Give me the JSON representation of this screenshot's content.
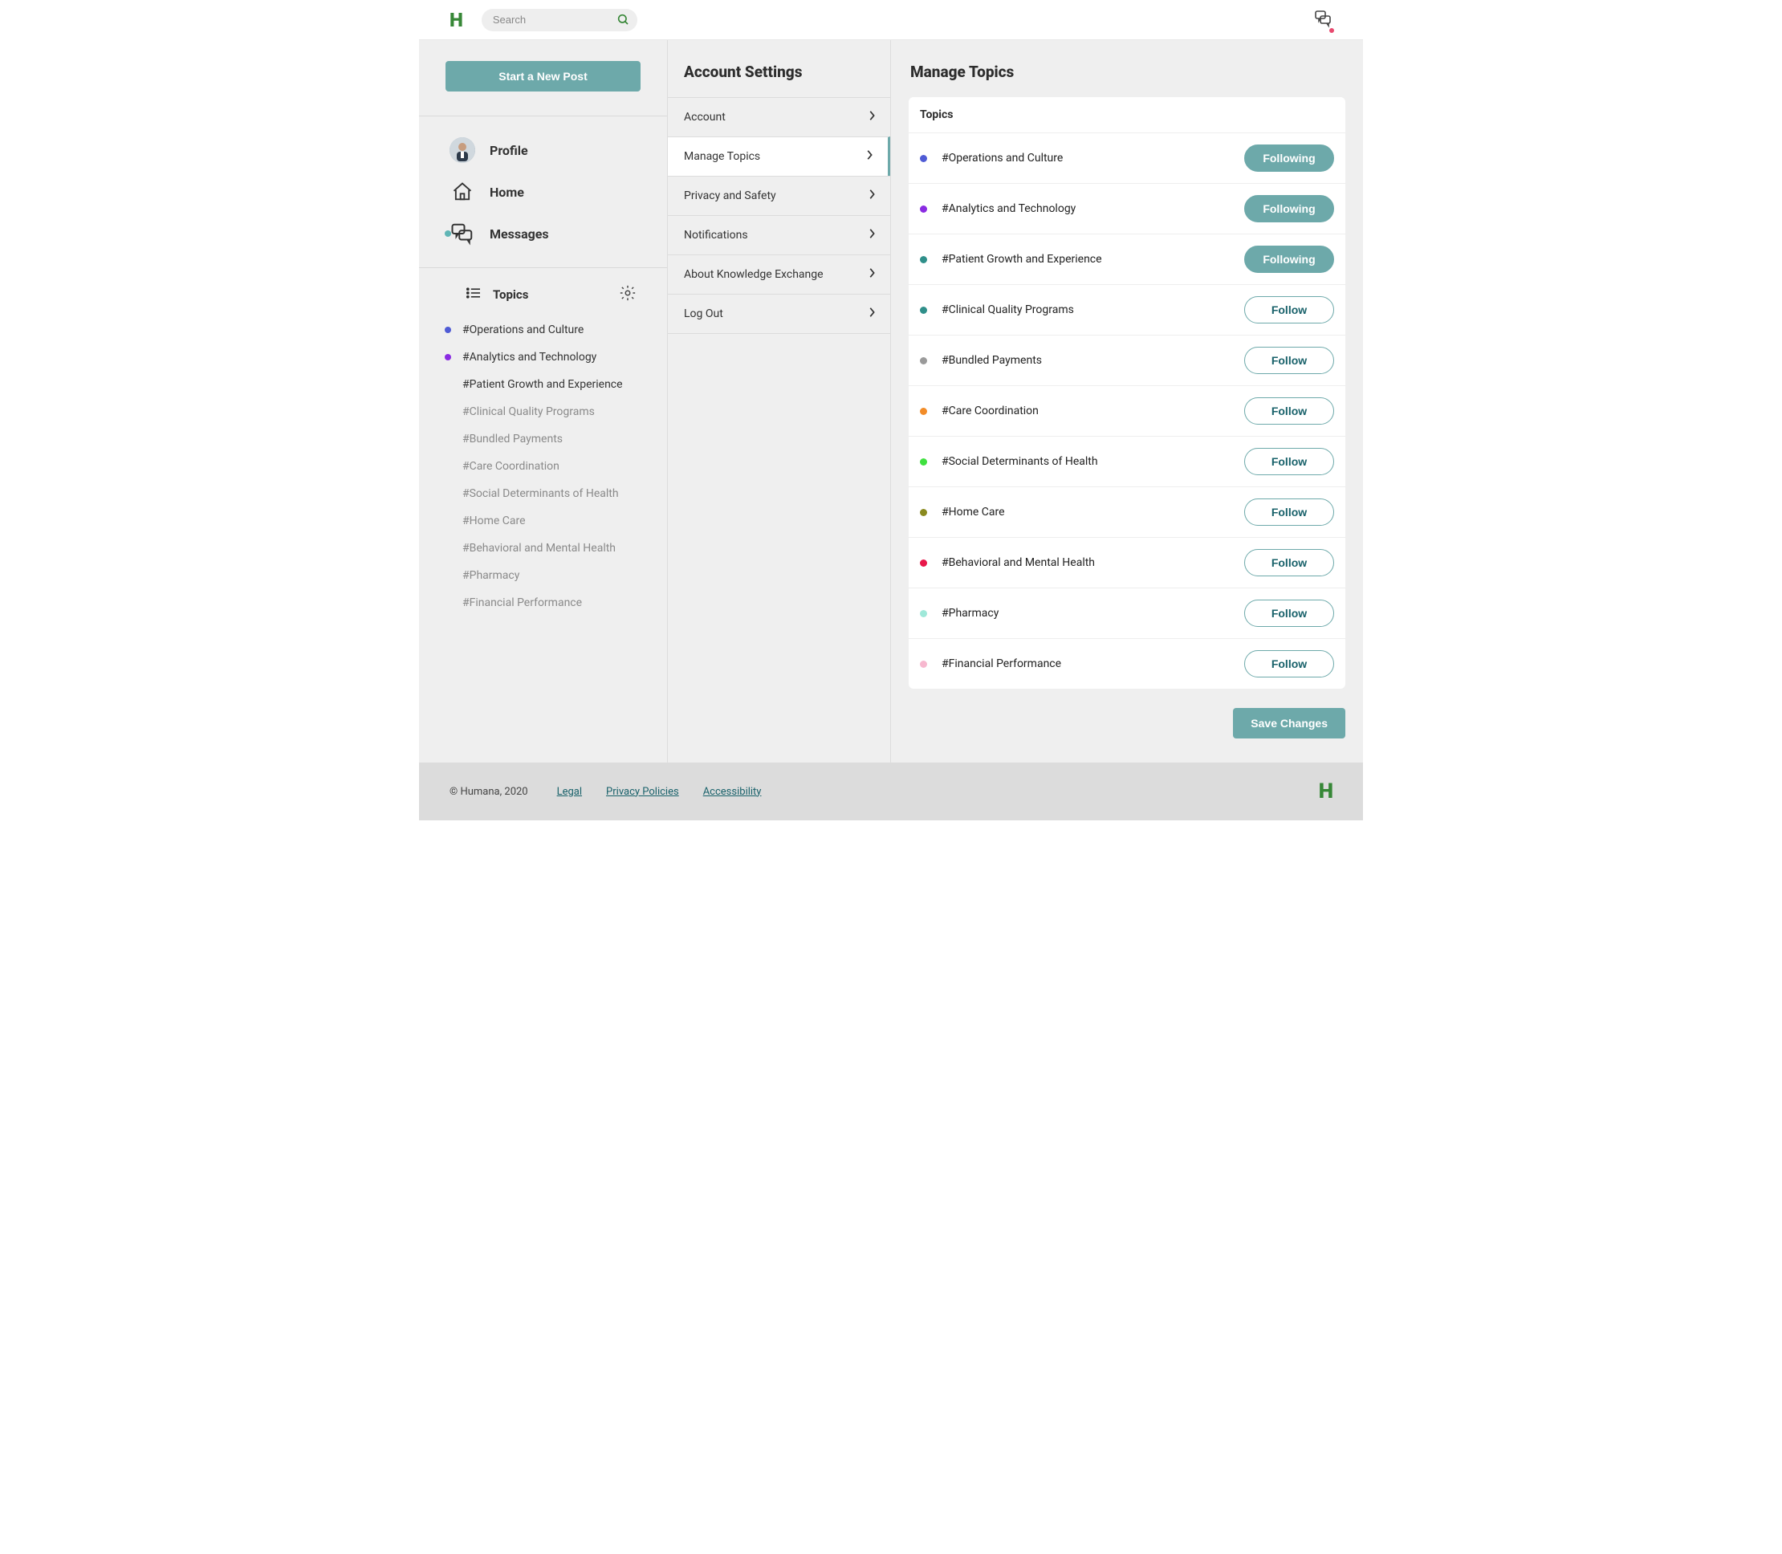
{
  "header": {
    "search_placeholder": "Search"
  },
  "sidebar": {
    "new_post_label": "Start a New Post",
    "nav": {
      "profile": "Profile",
      "home": "Home",
      "messages": "Messages"
    },
    "topics_header": "Topics",
    "topics": [
      {
        "label": "#Operations and Culture",
        "color": "#4f5bd5",
        "followed": true
      },
      {
        "label": "#Analytics and Technology",
        "color": "#8a2be2",
        "followed": true
      },
      {
        "label": "#Patient Growth and Experience",
        "color": null,
        "followed": true
      },
      {
        "label": "#Clinical Quality Programs",
        "color": null,
        "followed": false
      },
      {
        "label": "#Bundled Payments",
        "color": null,
        "followed": false
      },
      {
        "label": "#Care Coordination",
        "color": null,
        "followed": false
      },
      {
        "label": "#Social Determinants of Health",
        "color": null,
        "followed": false
      },
      {
        "label": "#Home Care",
        "color": null,
        "followed": false
      },
      {
        "label": "#Behavioral and Mental Health",
        "color": null,
        "followed": false
      },
      {
        "label": "#Pharmacy",
        "color": null,
        "followed": false
      },
      {
        "label": "#Financial Performance",
        "color": null,
        "followed": false
      }
    ]
  },
  "settings_panel": {
    "title": "Account Settings",
    "items": [
      {
        "label": "Account",
        "active": false
      },
      {
        "label": "Manage Topics",
        "active": true
      },
      {
        "label": "Privacy and Safety",
        "active": false
      },
      {
        "label": "Notifications",
        "active": false
      },
      {
        "label": "About Knowledge Exchange",
        "active": false
      },
      {
        "label": "Log Out",
        "active": false
      }
    ]
  },
  "content": {
    "title": "Manage Topics",
    "card_header": "Topics",
    "following_label": "Following",
    "follow_label": "Follow",
    "save_label": "Save Changes",
    "topics": [
      {
        "label": "#Operations and Culture",
        "color": "#4f5bd5",
        "following": true
      },
      {
        "label": "#Analytics and Technology",
        "color": "#8a2be2",
        "following": true
      },
      {
        "label": "#Patient Growth and Experience",
        "color": "#2f8f8a",
        "following": true
      },
      {
        "label": "#Clinical Quality Programs",
        "color": "#2f8f8a",
        "following": false
      },
      {
        "label": "#Bundled Payments",
        "color": "#9a9a9a",
        "following": false
      },
      {
        "label": "#Care Coordination",
        "color": "#f28c28",
        "following": false
      },
      {
        "label": "#Social Determinants of Health",
        "color": "#3fe03f",
        "following": false
      },
      {
        "label": "#Home Care",
        "color": "#8a8a1f",
        "following": false
      },
      {
        "label": "#Behavioral and Mental Health",
        "color": "#e8174a",
        "following": false
      },
      {
        "label": "#Pharmacy",
        "color": "#9fe8d9",
        "following": false
      },
      {
        "label": "#Financial Performance",
        "color": "#f7b8cf",
        "following": false
      }
    ]
  },
  "footer": {
    "copyright": "© Humana, 2020",
    "links": [
      "Legal",
      "Privacy Policies",
      "Accessibility"
    ]
  },
  "colors": {
    "accent": "#6da9aa",
    "brand_green": "#378737",
    "link": "#18616a"
  }
}
